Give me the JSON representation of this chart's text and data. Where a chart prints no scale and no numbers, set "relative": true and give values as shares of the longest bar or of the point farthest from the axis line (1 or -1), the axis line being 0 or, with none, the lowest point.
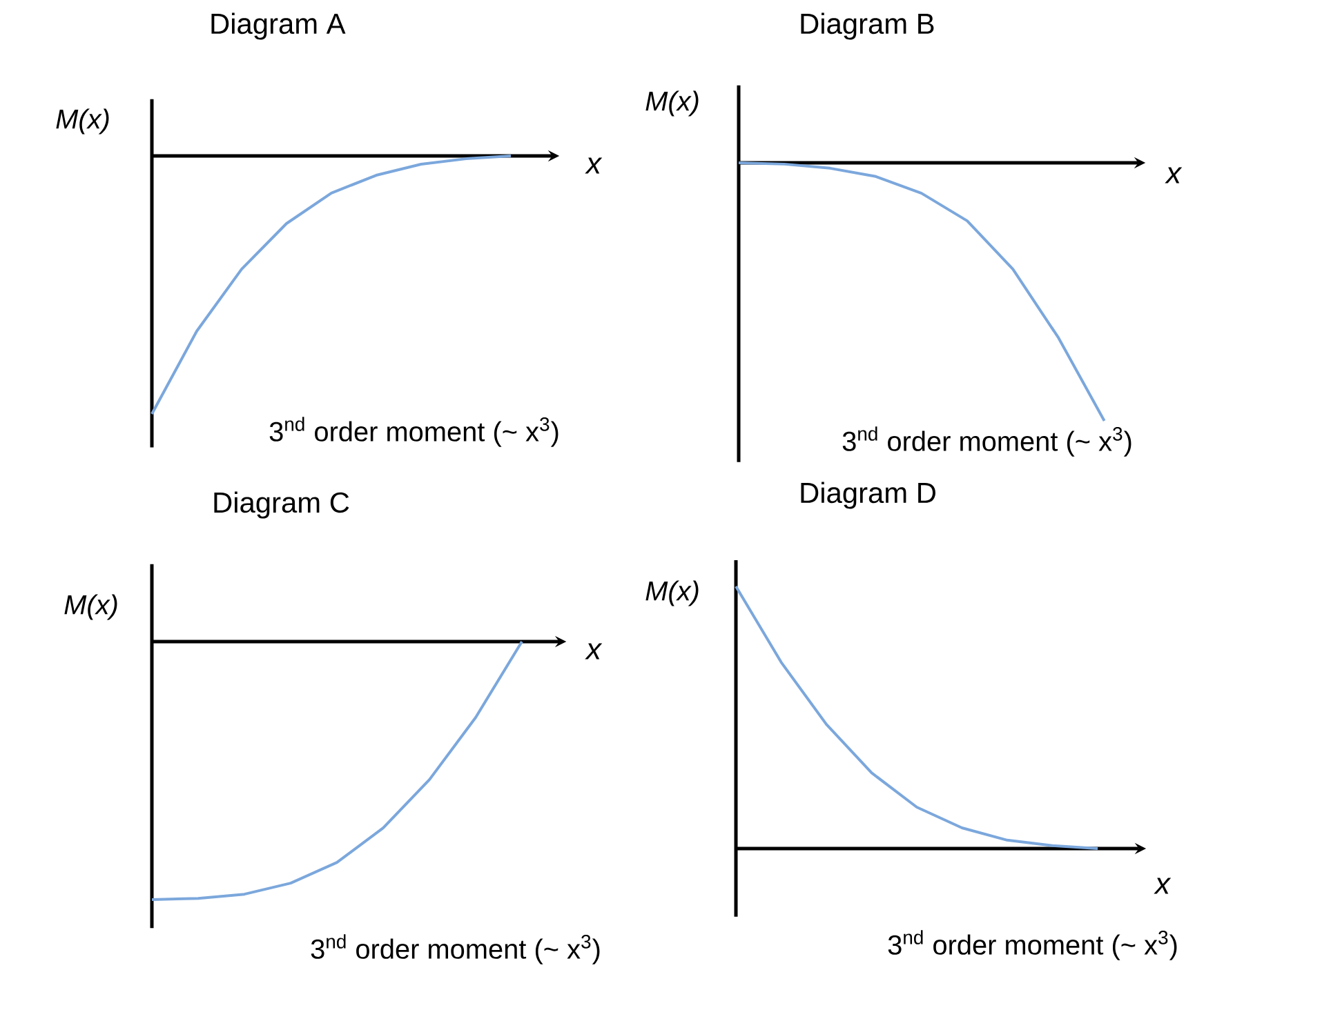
{
  "chart_data": [
    {
      "type": "line",
      "relative": true,
      "title": "Diagram A",
      "xlabel": "x",
      "ylabel": "M(x)",
      "marker": "none",
      "annotations": [
        "3$^{nd}$ order moment (~ x$^{3}$)"
      ],
      "categories": [
        null,
        null,
        null,
        null,
        null,
        null,
        null,
        null,
        null
      ],
      "series": [
        {
          "color": "#7ba7dc",
          "values": [
            -1,
            -0.679,
            -0.439,
            -0.262,
            -0.144,
            -0.075,
            -0.032,
            -0.011,
            0
          ]
        }
      ]
    },
    {
      "type": "line",
      "relative": true,
      "title": "Diagram B",
      "xlabel": "x",
      "ylabel": "M(x)",
      "marker": "none",
      "annotations": [
        "3$^{nd}$ order moment (~ x$^{3}$)"
      ],
      "categories": [
        null,
        null,
        null,
        null,
        null,
        null,
        null,
        null,
        null
      ],
      "series": [
        {
          "color": "#7ba7dc",
          "values": [
            0,
            -0.005,
            -0.021,
            -0.053,
            -0.118,
            -0.225,
            -0.412,
            -0.679,
            -1
          ]
        }
      ]
    },
    {
      "type": "line",
      "relative": true,
      "title": "Diagram C",
      "xlabel": "x",
      "ylabel": "M(x)",
      "marker": "none",
      "annotations": [
        "3$^{nd}$ order moment (~ x$^{3}$)"
      ],
      "categories": [
        null,
        null,
        null,
        null,
        null,
        null,
        null,
        null,
        null
      ],
      "series": [
        {
          "color": "#7ba7dc",
          "values": [
            -1,
            -0.995,
            -0.979,
            -0.936,
            -0.856,
            -0.722,
            -0.535,
            -0.294,
            0
          ]
        }
      ]
    },
    {
      "type": "line",
      "relative": true,
      "title": "Diagram D",
      "xlabel": "x",
      "ylabel": "M(x)",
      "marker": "none",
      "annotations": [
        "3$^{nd}$ order moment (~ x$^{3}$)"
      ],
      "categories": [
        null,
        null,
        null,
        null,
        null,
        null,
        null,
        null,
        null
      ],
      "series": [
        {
          "color": "#7ba7dc",
          "values": [
            1,
            0.711,
            0.474,
            0.289,
            0.158,
            0.079,
            0.032,
            0.011,
            0
          ]
        }
      ]
    }
  ]
}
